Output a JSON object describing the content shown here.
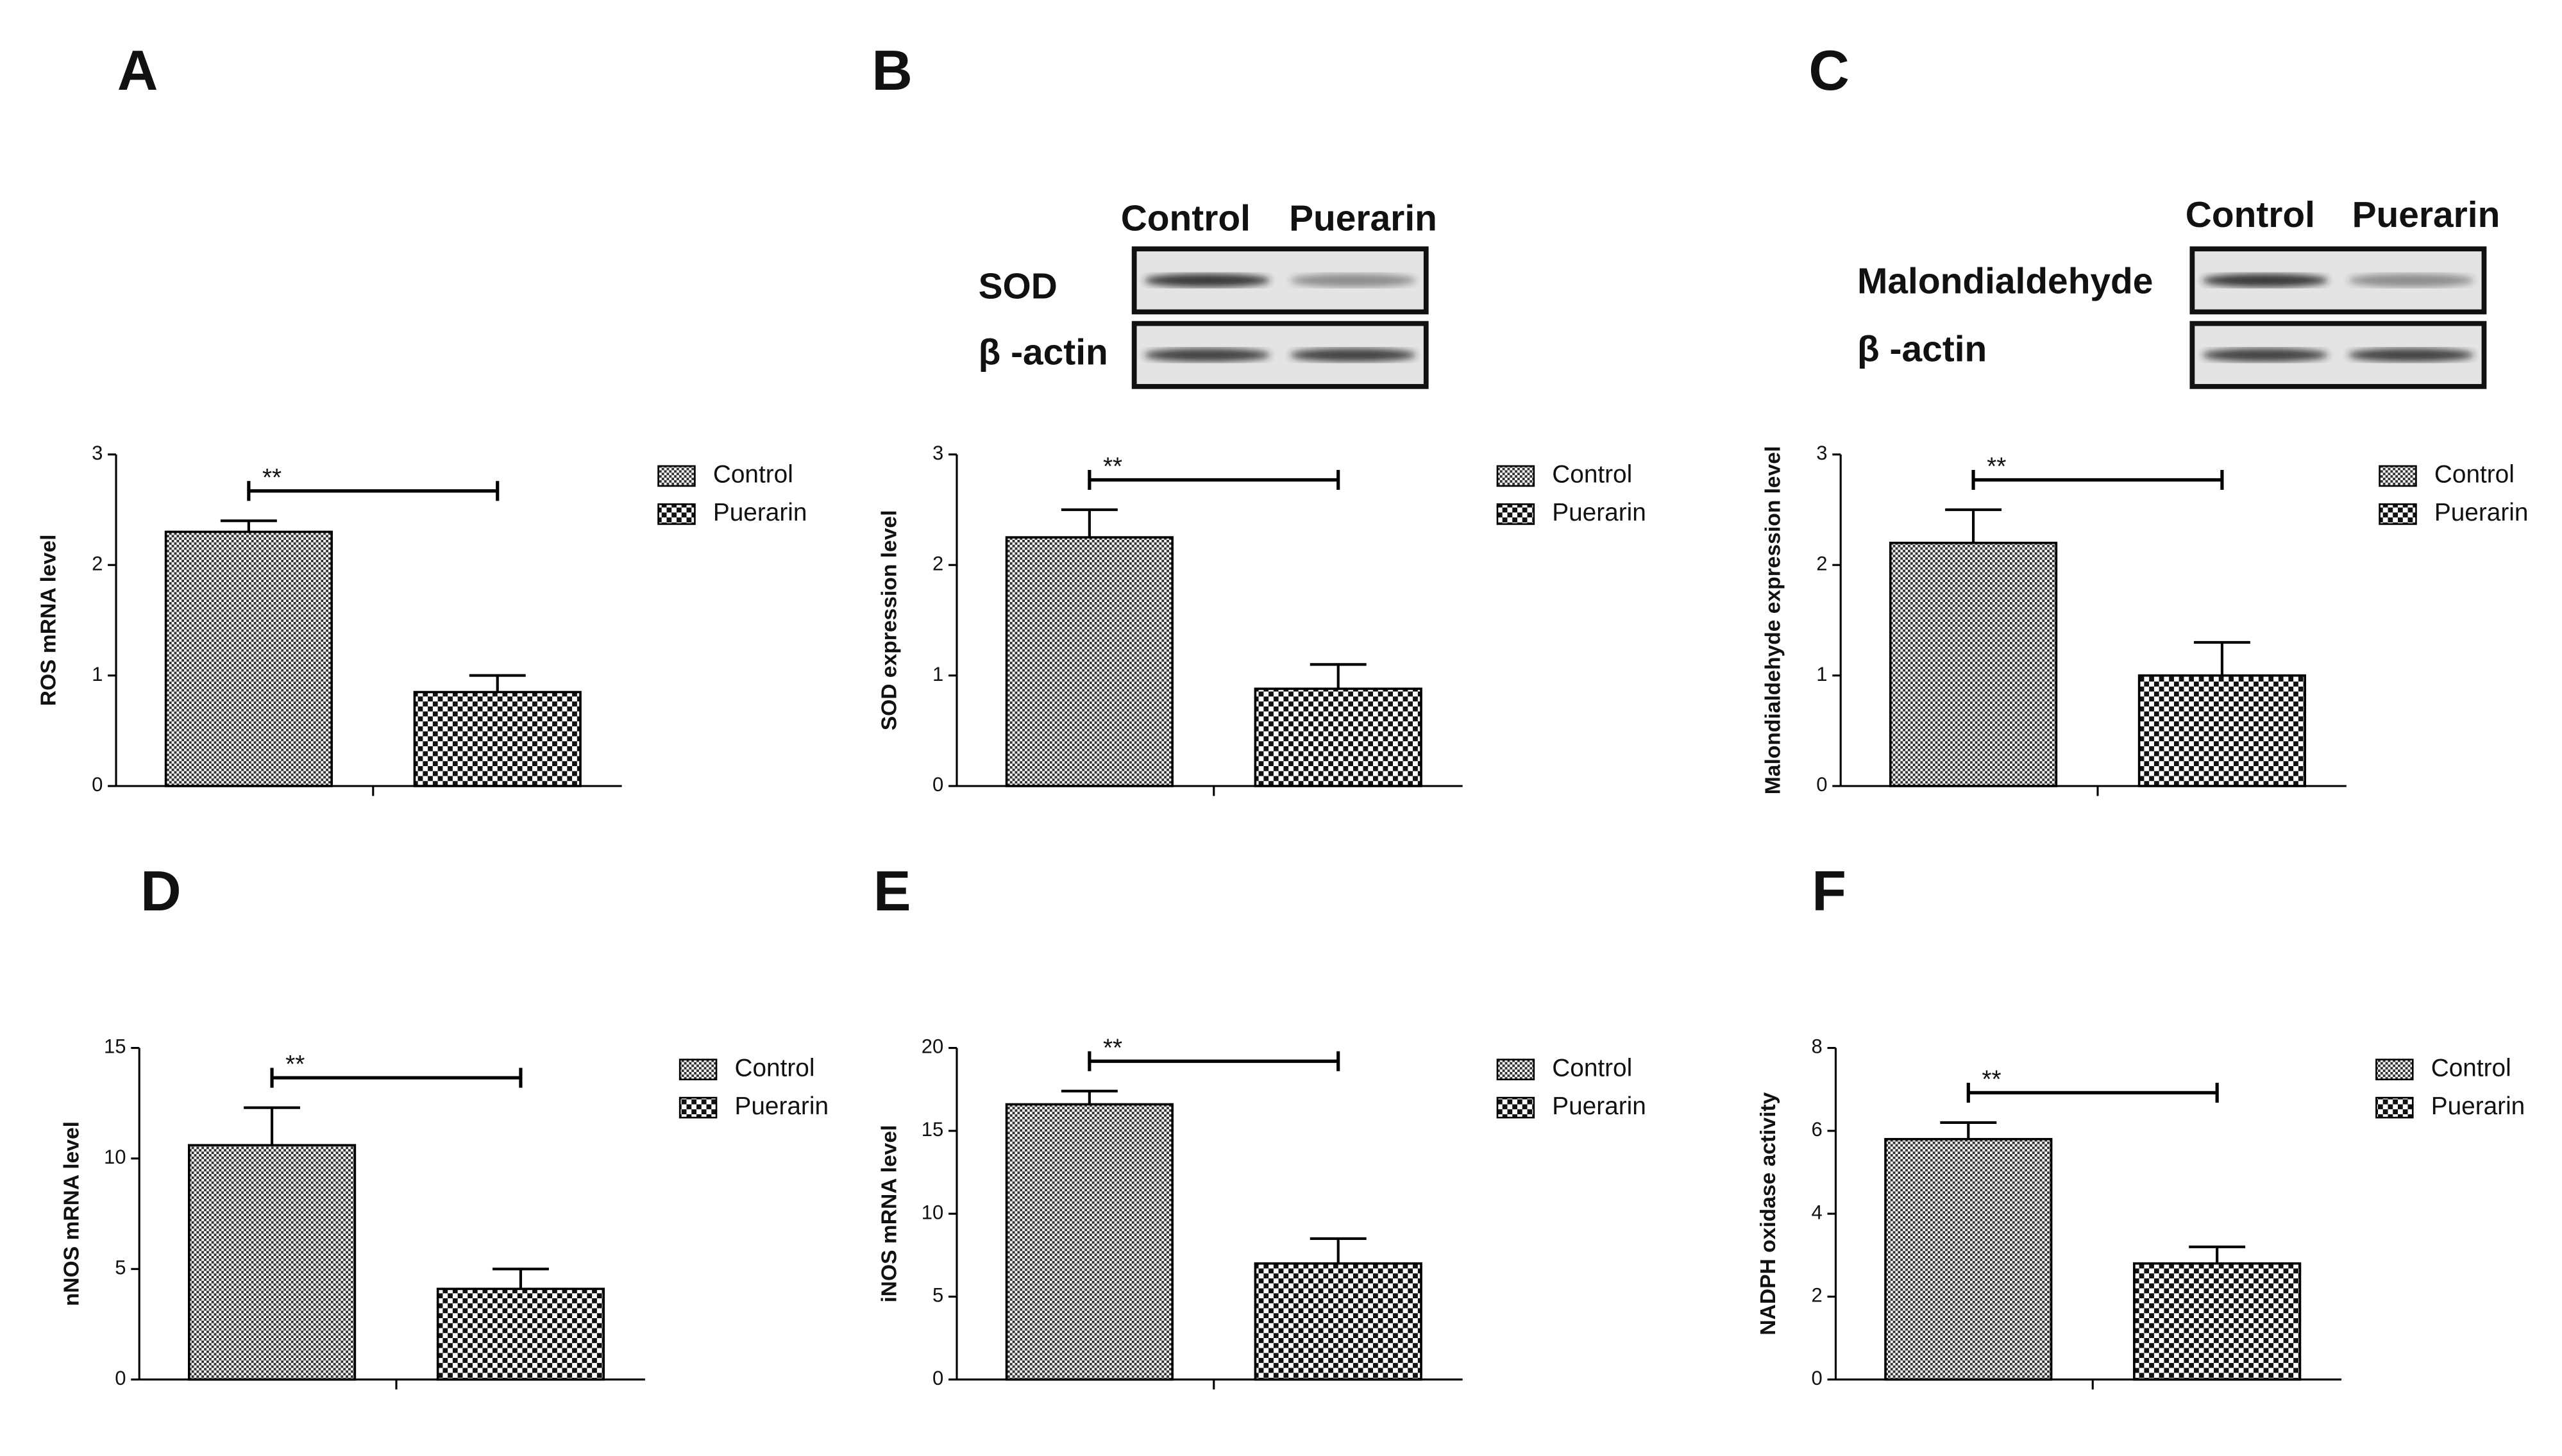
{
  "chart_data": [
    {
      "type": "bar",
      "panel": "A",
      "y_label": "ROS mRNA level",
      "annotation": "**",
      "ylim": [
        0,
        3
      ],
      "yticks": [
        0,
        1,
        2,
        3
      ],
      "series": [
        {
          "name": "Control",
          "color": "#000000",
          "values": [
            2.3
          ],
          "errors": [
            0.1
          ]
        },
        {
          "name": "Puerarin",
          "color": "#000000",
          "values": [
            0.85
          ],
          "errors": [
            0.15
          ]
        }
      ]
    },
    {
      "type": "bar",
      "panel": "B",
      "y_label": "SOD expression level",
      "annotation": "**",
      "ylim": [
        0,
        3
      ],
      "yticks": [
        0,
        1,
        2,
        3
      ],
      "blot": {
        "columns": [
          "Control",
          "Puerarin"
        ],
        "rows": [
          "SOD",
          "β -actin"
        ]
      },
      "series": [
        {
          "name": "Control",
          "color": "#000000",
          "values": [
            2.25
          ],
          "errors": [
            0.25
          ]
        },
        {
          "name": "Puerarin",
          "color": "#000000",
          "values": [
            0.88
          ],
          "errors": [
            0.22
          ]
        }
      ]
    },
    {
      "type": "bar",
      "panel": "C",
      "y_label": "Malondialdehyde expression level",
      "annotation": "**",
      "ylim": [
        0,
        3
      ],
      "yticks": [
        0,
        1,
        2,
        3
      ],
      "blot": {
        "columns": [
          "Control",
          "Puerarin"
        ],
        "rows": [
          "Malondialdehyde",
          "β -actin"
        ]
      },
      "series": [
        {
          "name": "Control",
          "color": "#000000",
          "values": [
            2.2
          ],
          "errors": [
            0.3
          ]
        },
        {
          "name": "Puerarin",
          "color": "#000000",
          "values": [
            1.0
          ],
          "errors": [
            0.3
          ]
        }
      ]
    },
    {
      "type": "bar",
      "panel": "D",
      "y_label": "nNOS mRNA level",
      "annotation": "**",
      "ylim": [
        0,
        15
      ],
      "yticks": [
        0,
        5,
        10,
        15
      ],
      "series": [
        {
          "name": "Control",
          "color": "#000000",
          "values": [
            10.6
          ],
          "errors": [
            1.7
          ]
        },
        {
          "name": "Puerarin",
          "color": "#000000",
          "values": [
            4.1
          ],
          "errors": [
            0.9
          ]
        }
      ]
    },
    {
      "type": "bar",
      "panel": "E",
      "y_label": "iNOS mRNA level",
      "annotation": "**",
      "ylim": [
        0,
        20
      ],
      "yticks": [
        0,
        5,
        10,
        15,
        20
      ],
      "series": [
        {
          "name": "Control",
          "color": "#000000",
          "values": [
            16.6
          ],
          "errors": [
            0.8
          ]
        },
        {
          "name": "Puerarin",
          "color": "#000000",
          "values": [
            7.0
          ],
          "errors": [
            1.5
          ]
        }
      ]
    },
    {
      "type": "bar",
      "panel": "F",
      "y_label": "NADPH oxidase activity",
      "annotation": "**",
      "ylim": [
        0,
        8
      ],
      "yticks": [
        0,
        2,
        4,
        6,
        8
      ],
      "series": [
        {
          "name": "Control",
          "color": "#000000",
          "values": [
            5.8
          ],
          "errors": [
            0.4
          ]
        },
        {
          "name": "Puerarin",
          "color": "#000000",
          "values": [
            2.8
          ],
          "errors": [
            0.4
          ]
        }
      ]
    }
  ]
}
